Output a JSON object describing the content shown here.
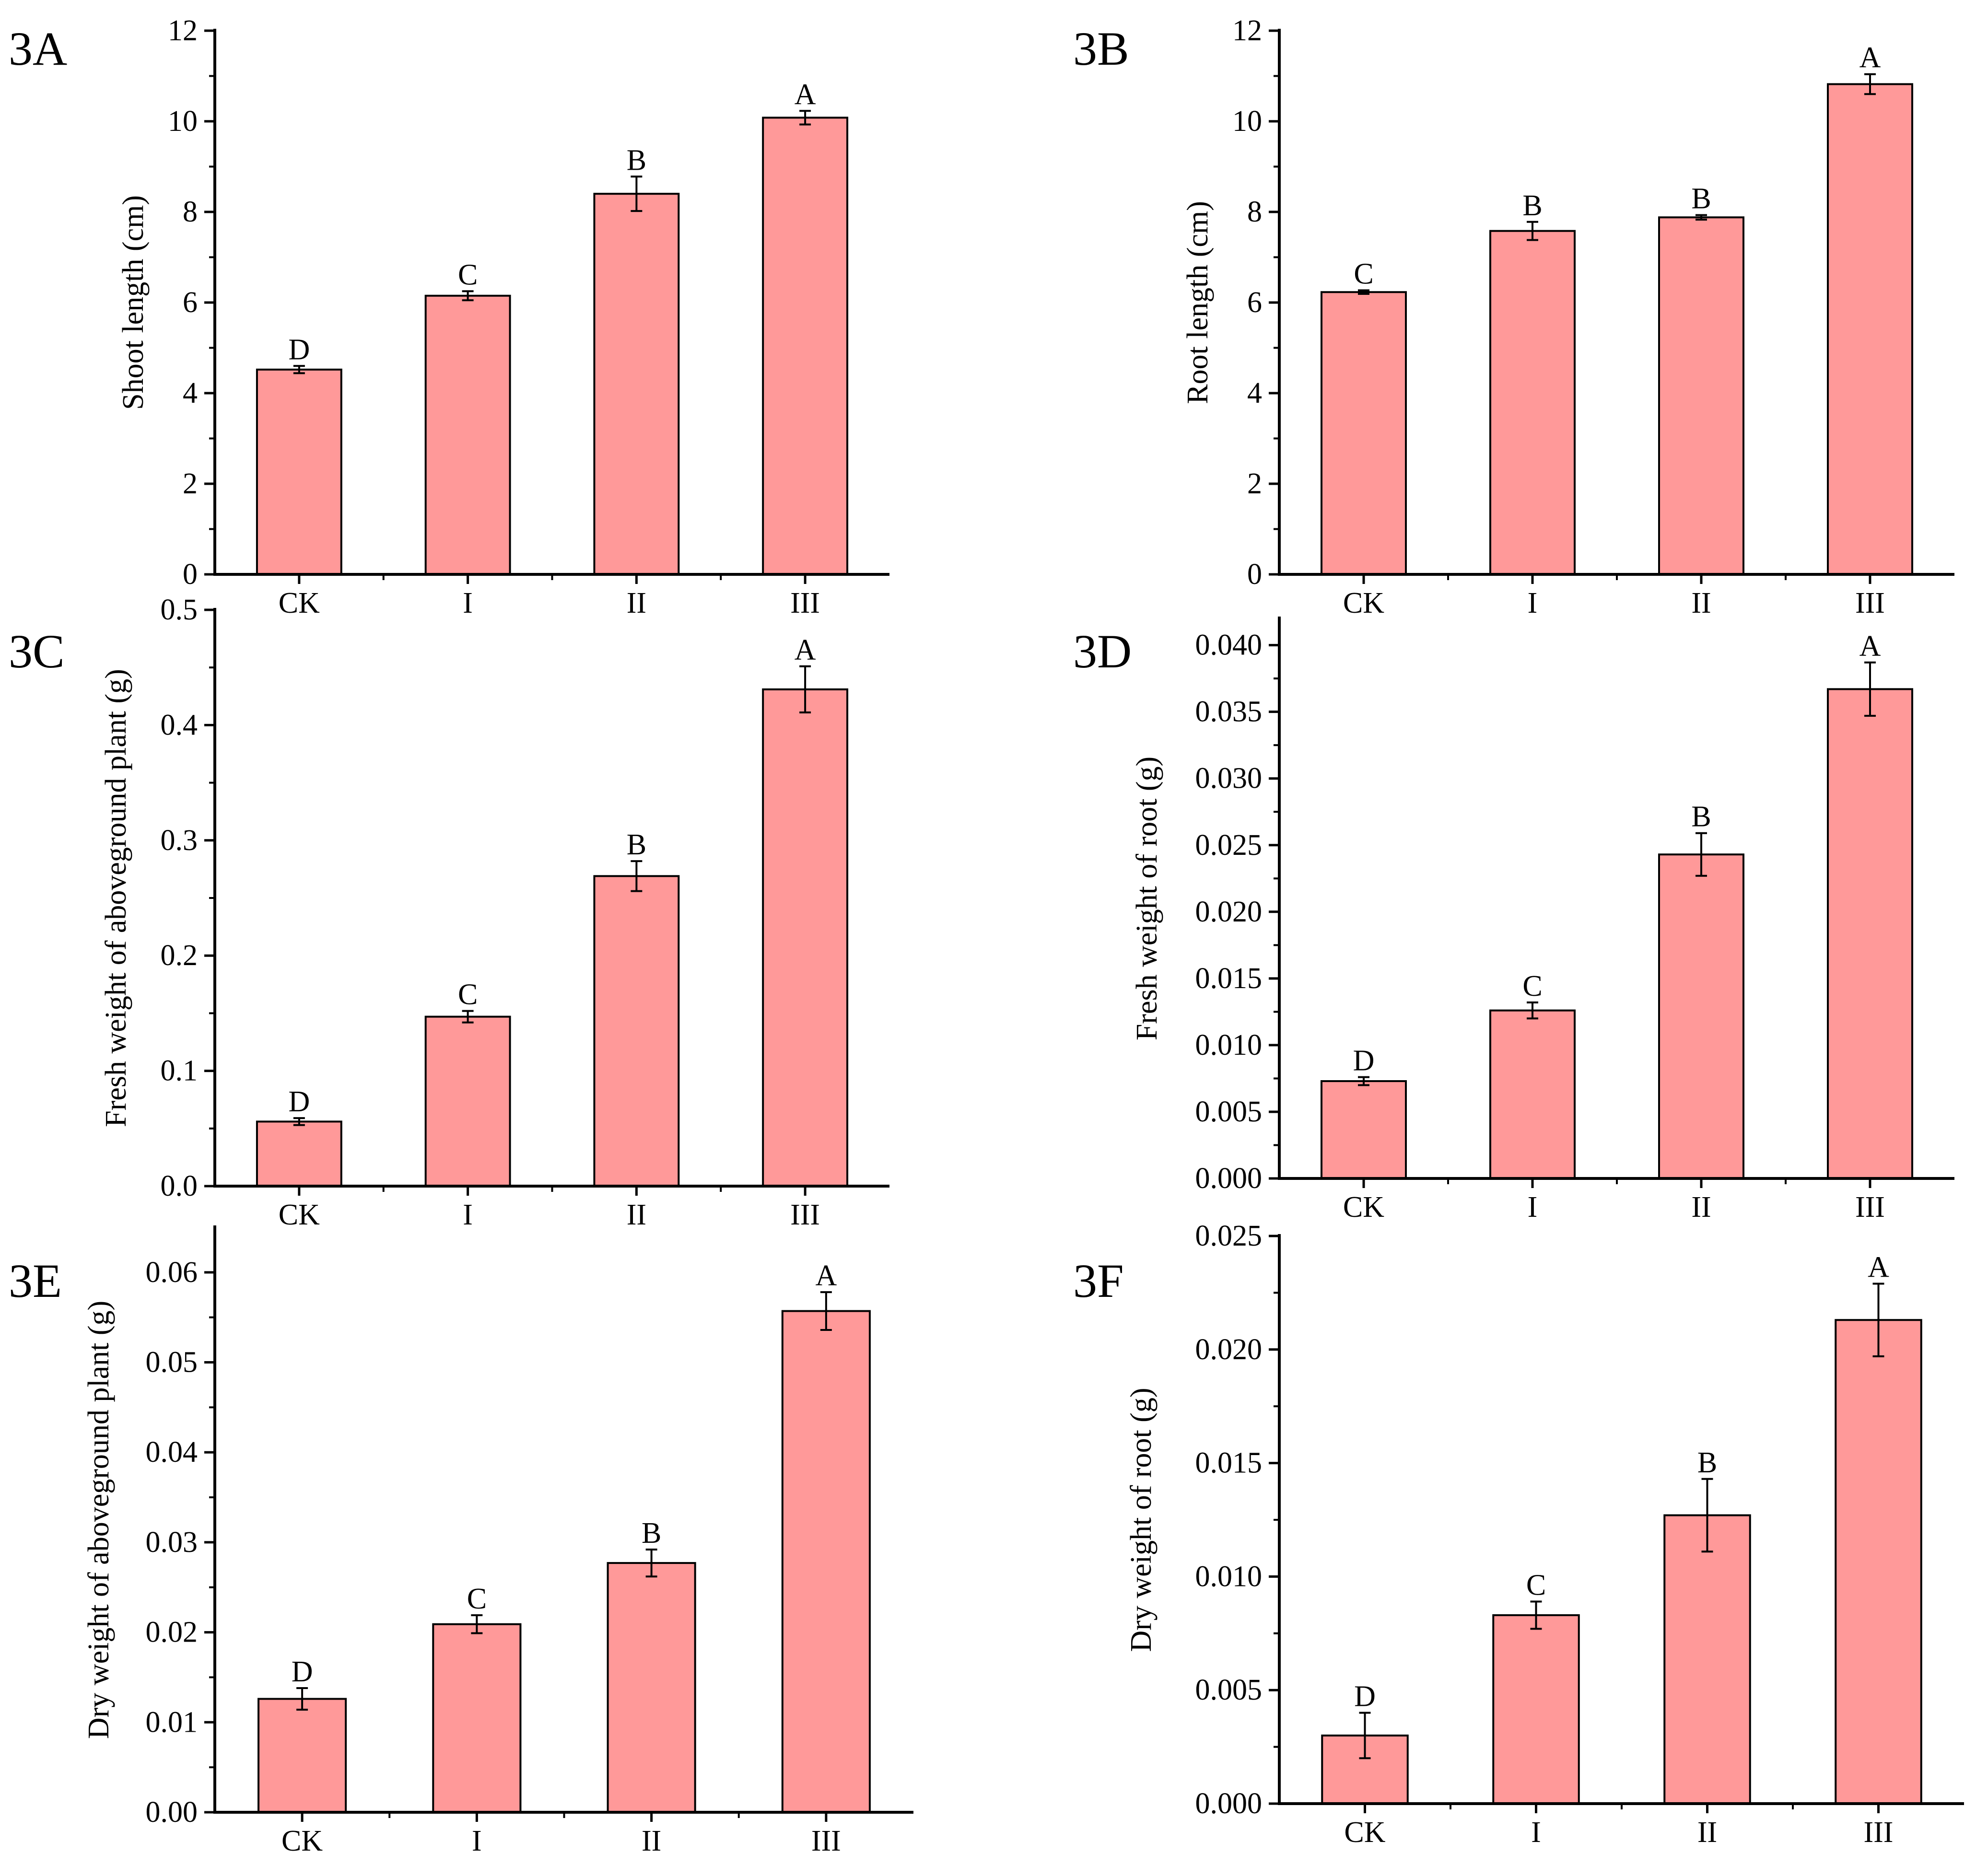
{
  "figure": {
    "bar_color": "#FF9999",
    "bar_stroke": "#000000",
    "axis_color": "#000000"
  },
  "chart_data": [
    {
      "panel": "3A",
      "type": "bar",
      "title": "",
      "xlabel": "",
      "ylabel": "Shoot length (cm)",
      "categories": [
        "CK",
        "I",
        "II",
        "III"
      ],
      "values": [
        4.52,
        6.15,
        8.4,
        10.08
      ],
      "errors": [
        0.08,
        0.1,
        0.38,
        0.15
      ],
      "significance": [
        "D",
        "C",
        "B",
        "A"
      ],
      "ylim": [
        0,
        12
      ],
      "yticks": [
        0,
        2,
        4,
        6,
        8,
        10,
        12
      ],
      "ytick_labels": [
        "0",
        "2",
        "4",
        "6",
        "8",
        "10",
        "12"
      ]
    },
    {
      "panel": "3B",
      "type": "bar",
      "title": "",
      "xlabel": "",
      "ylabel": "Root length (cm)",
      "categories": [
        "CK",
        "I",
        "II",
        "III"
      ],
      "values": [
        6.23,
        7.58,
        7.88,
        10.82
      ],
      "errors": [
        0.04,
        0.2,
        0.05,
        0.22
      ],
      "significance": [
        "C",
        "B",
        "B",
        "A"
      ],
      "ylim": [
        0,
        12
      ],
      "yticks": [
        0,
        2,
        4,
        6,
        8,
        10,
        12
      ],
      "ytick_labels": [
        "0",
        "2",
        "4",
        "6",
        "8",
        "10",
        "12"
      ]
    },
    {
      "panel": "3C",
      "type": "bar",
      "title": "",
      "xlabel": "",
      "ylabel": "Fresh weight of aboveground plant (g)",
      "categories": [
        "CK",
        "I",
        "II",
        "III"
      ],
      "values": [
        0.056,
        0.147,
        0.269,
        0.431
      ],
      "errors": [
        0.003,
        0.005,
        0.013,
        0.02
      ],
      "significance": [
        "D",
        "C",
        "B",
        "A"
      ],
      "ylim": [
        0,
        0.5
      ],
      "yticks": [
        0,
        0.1,
        0.2,
        0.3,
        0.4,
        0.5
      ],
      "ytick_labels": [
        "0.0",
        "0.1",
        "0.2",
        "0.3",
        "0.4",
        "0.5"
      ]
    },
    {
      "panel": "3D",
      "type": "bar",
      "title": "",
      "xlabel": "",
      "ylabel": "Fresh weight of root (g)",
      "categories": [
        "CK",
        "I",
        "II",
        "III"
      ],
      "values": [
        0.0073,
        0.0126,
        0.0243,
        0.0367
      ],
      "errors": [
        0.0003,
        0.0006,
        0.0016,
        0.002
      ],
      "significance": [
        "D",
        "C",
        "B",
        "A"
      ],
      "ylim": [
        0,
        0.042
      ],
      "yticks": [
        0,
        0.005,
        0.01,
        0.015,
        0.02,
        0.025,
        0.03,
        0.035,
        0.04
      ],
      "ytick_labels": [
        "0.000",
        "0.005",
        "0.010",
        "0.015",
        "0.020",
        "0.025",
        "0.030",
        "0.035",
        "0.040"
      ]
    },
    {
      "panel": "3E",
      "type": "bar",
      "title": "",
      "xlabel": "",
      "ylabel": "Dry weight of aboveground plant (g)",
      "categories": [
        "CK",
        "I",
        "II",
        "III"
      ],
      "values": [
        0.0126,
        0.0209,
        0.0277,
        0.0557
      ],
      "errors": [
        0.0012,
        0.001,
        0.0015,
        0.0021
      ],
      "significance": [
        "D",
        "C",
        "B",
        "A"
      ],
      "ylim": [
        0,
        0.065
      ],
      "yticks": [
        0,
        0.01,
        0.02,
        0.03,
        0.04,
        0.05,
        0.06
      ],
      "ytick_labels": [
        "0.00",
        "0.01",
        "0.02",
        "0.03",
        "0.04",
        "0.05",
        "0.06"
      ]
    },
    {
      "panel": "3F",
      "type": "bar",
      "title": "",
      "xlabel": "",
      "ylabel": "Dry weight of root (g)",
      "categories": [
        "CK",
        "I",
        "II",
        "III"
      ],
      "values": [
        0.003,
        0.0083,
        0.0127,
        0.0213
      ],
      "errors": [
        0.001,
        0.0006,
        0.0016,
        0.0016
      ],
      "significance": [
        "D",
        "C",
        "B",
        "A"
      ],
      "ylim": [
        0,
        0.025
      ],
      "yticks": [
        0,
        0.005,
        0.01,
        0.015,
        0.02,
        0.025
      ],
      "ytick_labels": [
        "0.000",
        "0.005",
        "0.010",
        "0.015",
        "0.020",
        "0.025"
      ]
    }
  ]
}
